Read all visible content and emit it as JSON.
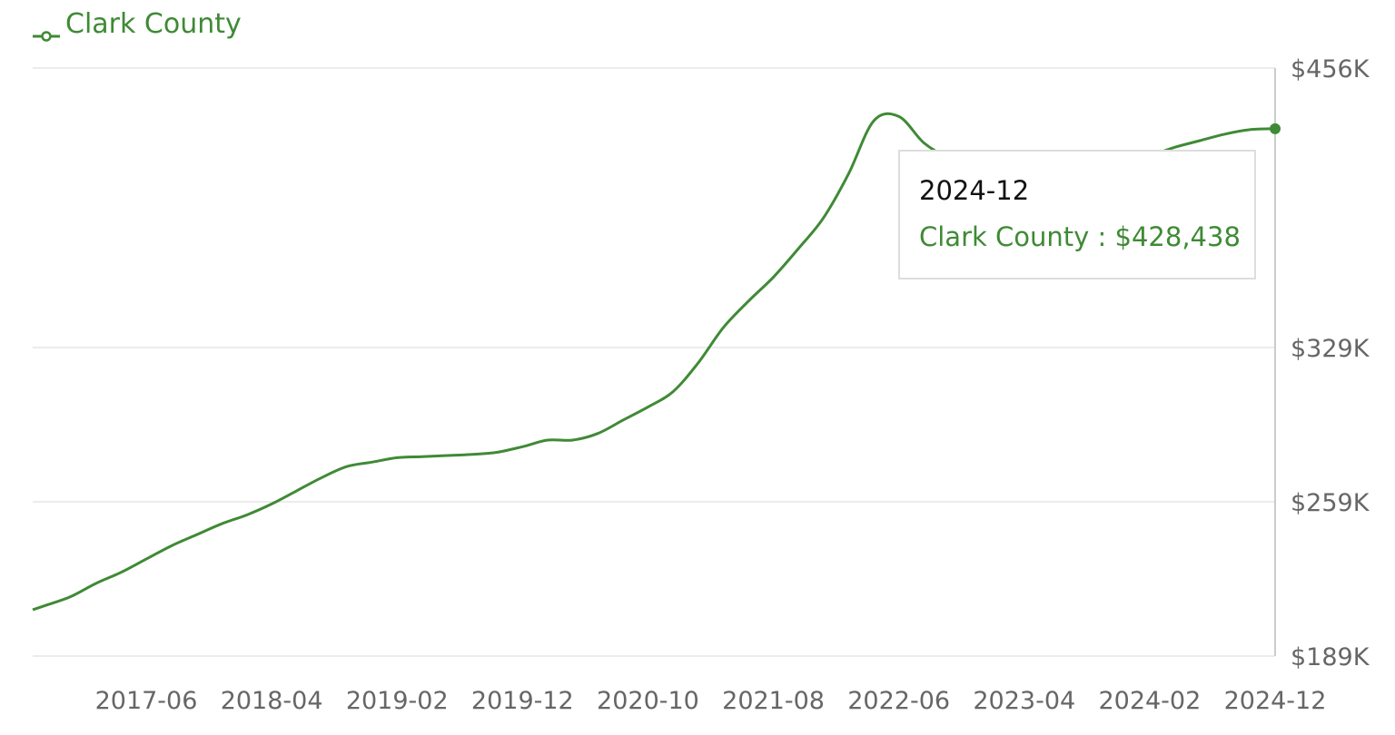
{
  "legend": {
    "label": "Clark County",
    "marker_icon": "line-circle-marker-icon"
  },
  "tooltip": {
    "date": "2024-12",
    "series": "Clark County",
    "separator": " : ",
    "value": "$428,438"
  },
  "colors": {
    "series": "#3f8a35",
    "grid": "#ececec",
    "axis_text": "#666666",
    "axis_line": "#cccccc"
  },
  "chart_data": {
    "type": "line",
    "title": "",
    "xlabel": "",
    "ylabel": "",
    "y_axis_side": "right",
    "ylim": [
      189000,
      456000
    ],
    "y_ticks": [
      189000,
      259000,
      329000,
      456000
    ],
    "y_tick_labels": [
      "$189K",
      "$259K",
      "$329K",
      "$456K"
    ],
    "x_tick_labels": [
      "2017-06",
      "2018-04",
      "2019-02",
      "2019-12",
      "2020-10",
      "2021-08",
      "2022-06",
      "2023-04",
      "2024-02",
      "2024-12"
    ],
    "grid": true,
    "legend_position": "top-left",
    "series": [
      {
        "name": "Clark County",
        "x": [
          "2016-08",
          "2016-10",
          "2016-12",
          "2017-02",
          "2017-04",
          "2017-06",
          "2017-08",
          "2017-10",
          "2017-12",
          "2018-02",
          "2018-04",
          "2018-06",
          "2018-08",
          "2018-10",
          "2018-12",
          "2019-02",
          "2019-04",
          "2019-06",
          "2019-08",
          "2019-10",
          "2019-12",
          "2020-02",
          "2020-04",
          "2020-06",
          "2020-08",
          "2020-10",
          "2020-12",
          "2021-02",
          "2021-04",
          "2021-06",
          "2021-08",
          "2021-10",
          "2021-12",
          "2022-02",
          "2022-04",
          "2022-06",
          "2022-08",
          "2022-10",
          "2022-12",
          "2023-02",
          "2023-04",
          "2023-06",
          "2023-08",
          "2023-10",
          "2023-12",
          "2024-02",
          "2024-04",
          "2024-06",
          "2024-08",
          "2024-10",
          "2024-12"
        ],
        "values": [
          210000,
          212000,
          216000,
          222000,
          227000,
          233000,
          239000,
          244000,
          249000,
          253000,
          258000,
          264000,
          270000,
          275000,
          277000,
          279000,
          279500,
          280000,
          280500,
          281500,
          284000,
          287000,
          287000,
          290000,
          296000,
          302000,
          309000,
          322000,
          338000,
          350000,
          361000,
          374000,
          388000,
          408000,
          432000,
          434000,
          422000,
          415000,
          410000,
          410000,
          410000,
          410000,
          410000,
          410000,
          412000,
          416000,
          420000,
          423000,
          426000,
          428000,
          428438
        ]
      }
    ],
    "highlighted_point": {
      "x": "2024-12",
      "value": 428438
    }
  }
}
